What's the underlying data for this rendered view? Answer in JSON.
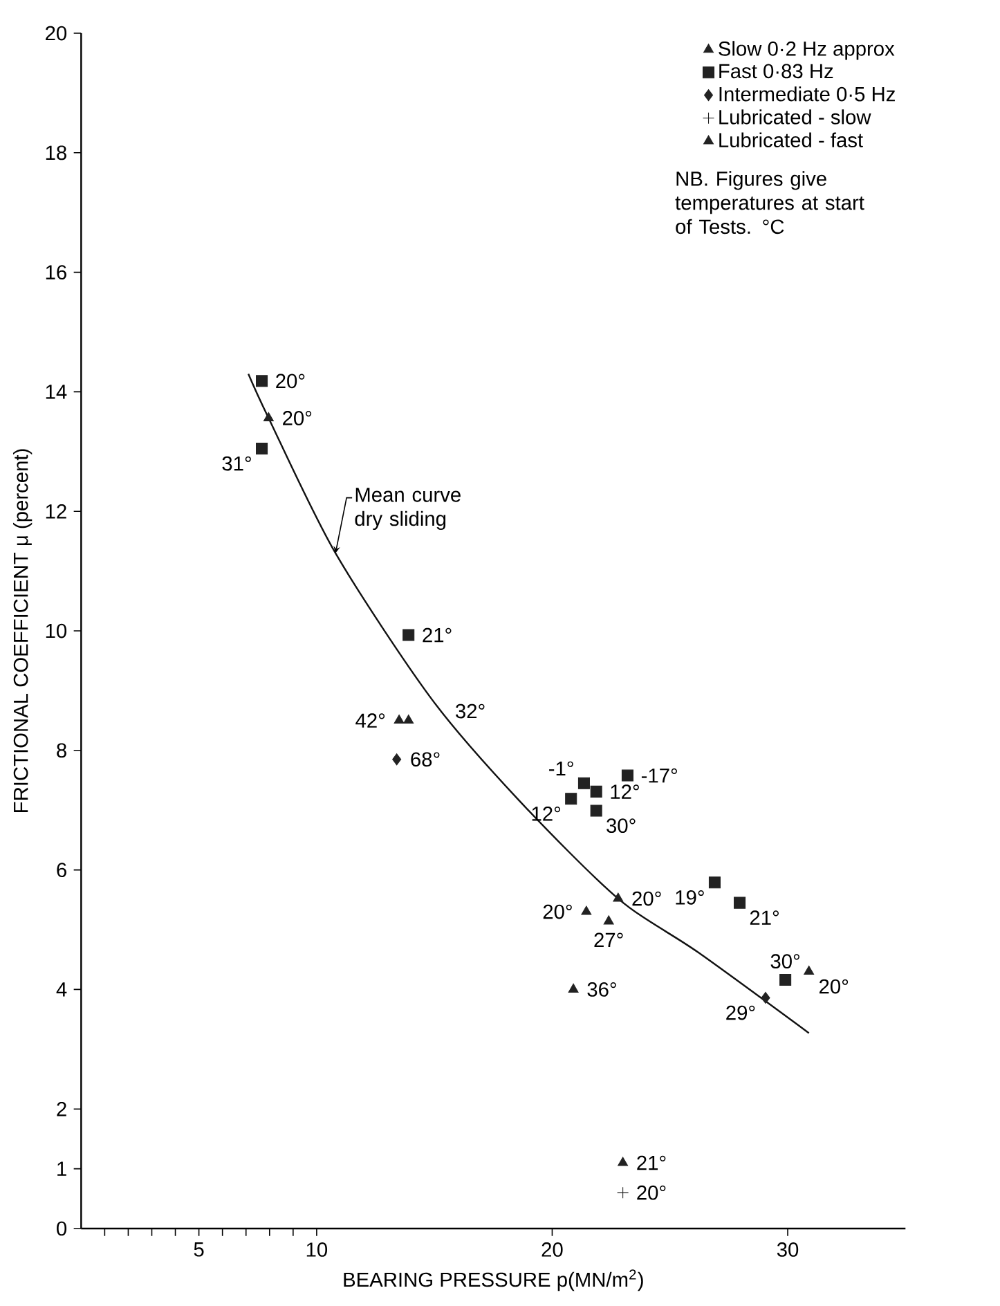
{
  "chart_data": {
    "type": "scatter",
    "xlabel": "BEARING PRESSURE p(MN/m$^{2}$)",
    "ylabel": "FRICTIONAL COEFFICIENT μ (percent)",
    "xlim": [
      0,
      35
    ],
    "ylim": [
      0,
      20
    ],
    "xticks": [
      {
        "value": 1,
        "label": null
      },
      {
        "value": 2,
        "label": null
      },
      {
        "value": 3,
        "label": null
      },
      {
        "value": 4,
        "label": null
      },
      5,
      {
        "value": 6,
        "label": null
      },
      {
        "value": 7,
        "label": null
      },
      {
        "value": 8,
        "label": null
      },
      {
        "value": 9,
        "label": null
      },
      10,
      20,
      30
    ],
    "yticks": [
      0,
      1,
      2,
      4,
      6,
      8,
      10,
      12,
      14,
      16,
      18,
      20
    ],
    "legend": "top right",
    "series": [
      {
        "name": "Slow 0·2 Hz approx",
        "color": "#222222",
        "marker": "triangle",
        "x": [
          7.96,
          13.5,
          13.9,
          21.45,
          22.8,
          22.4,
          20.9,
          30.9
        ],
        "values": [
          13.56,
          8.5,
          8.5,
          5.3,
          5.52,
          5.14,
          4.0,
          4.3
        ]
      },
      {
        "name": "Fast 0·83 Hz",
        "color": "#222222",
        "marker": "square",
        "x": [
          7.67,
          7.67,
          13.9,
          21.35,
          20.8,
          21.87,
          21.87,
          23.2,
          26.9,
          27.96,
          29.9
        ],
        "values": [
          14.18,
          13.05,
          9.93,
          7.45,
          7.19,
          7.31,
          6.99,
          7.58,
          5.79,
          5.45,
          4.16
        ]
      },
      {
        "name": "Intermediate 0·5 Hz",
        "color": "#222222",
        "marker": "diamond",
        "x": [
          13.4,
          29.06
        ],
        "values": [
          7.85,
          3.86
        ]
      },
      {
        "name": "Lubricated - slow",
        "color": "#222222",
        "marker": "cross",
        "x": [
          23.0
        ],
        "values": [
          0.6
        ]
      },
      {
        "name": "Lubricated - fast",
        "color": "#222222",
        "marker": "triangle",
        "x": [
          23.0
        ],
        "values": [
          1.1
        ]
      },
      {
        "name": "Mean curve dry sliding",
        "type": "line",
        "color": "#111111",
        "marker": "none",
        "x": [
          7.1,
          7.96,
          10.8,
          14.9,
          18.6,
          22.8,
          26.2,
          30.9
        ],
        "values": [
          14.3,
          13.56,
          11.3,
          8.85,
          7.16,
          5.52,
          4.62,
          3.27
        ]
      }
    ],
    "annotations": [
      {
        "text": "20°",
        "x": 7.67,
        "y": 14.18
      },
      {
        "text": "20°",
        "x": 7.96,
        "y": 13.56
      },
      {
        "text": "31°",
        "x": 7.67,
        "y": 13.05
      },
      {
        "text": "21°",
        "x": 13.9,
        "y": 9.93
      },
      {
        "text": "42°",
        "x": 13.5,
        "y": 8.5
      },
      {
        "text": "32°",
        "x": 13.9,
        "y": 8.5
      },
      {
        "text": "68°",
        "x": 13.4,
        "y": 7.85
      },
      {
        "text": "-1°",
        "x": 21.35,
        "y": 7.45
      },
      {
        "text": "12°",
        "x": 20.8,
        "y": 7.19
      },
      {
        "text": "12°",
        "x": 21.87,
        "y": 7.31
      },
      {
        "text": "30°",
        "x": 21.87,
        "y": 6.99
      },
      {
        "text": "-17°",
        "x": 23.2,
        "y": 7.58
      },
      {
        "text": "20°",
        "x": 21.45,
        "y": 5.3
      },
      {
        "text": "20°",
        "x": 22.8,
        "y": 5.52
      },
      {
        "text": "27°",
        "x": 22.4,
        "y": 5.14
      },
      {
        "text": "36°",
        "x": 20.9,
        "y": 4.0
      },
      {
        "text": "19°",
        "x": 26.9,
        "y": 5.79
      },
      {
        "text": "21°",
        "x": 27.96,
        "y": 5.45
      },
      {
        "text": "30°",
        "x": 29.9,
        "y": 4.16
      },
      {
        "text": "20°",
        "x": 30.9,
        "y": 4.3
      },
      {
        "text": "29°",
        "x": 29.06,
        "y": 3.86
      },
      {
        "text": "21°",
        "x": 23.0,
        "y": 1.1
      },
      {
        "text": "20°",
        "x": 23.0,
        "y": 0.6
      },
      "NB. Figures give temperatures at start of Tests. °C"
    ]
  }
}
